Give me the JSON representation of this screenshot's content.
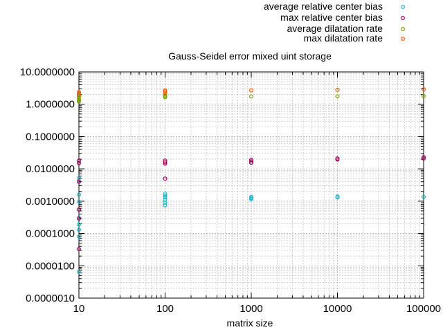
{
  "chart_data": {
    "type": "scatter",
    "title": "Gauss-Seidel error mixed uint storage",
    "xlabel": "matrix size",
    "ylabel": "",
    "x_scale": "log",
    "y_scale": "log",
    "xlim": [
      10,
      100000
    ],
    "ylim": [
      1e-06,
      10
    ],
    "grid": true,
    "legend_position": "top-right",
    "x_ticks": [
      {
        "value": 10,
        "label": "10"
      },
      {
        "value": 100,
        "label": "100"
      },
      {
        "value": 1000,
        "label": "1000"
      },
      {
        "value": 10000,
        "label": "10000"
      },
      {
        "value": 100000,
        "label": "100000"
      }
    ],
    "y_ticks": [
      {
        "value": 10,
        "label": "10.0000000"
      },
      {
        "value": 1,
        "label": "1.0000000"
      },
      {
        "value": 0.1,
        "label": "0.1000000"
      },
      {
        "value": 0.01,
        "label": "0.0100000"
      },
      {
        "value": 0.001,
        "label": "0.0010000"
      },
      {
        "value": 0.0001,
        "label": "0.0001000"
      },
      {
        "value": 1e-05,
        "label": "0.0000100"
      },
      {
        "value": 1e-06,
        "label": "0.0000010"
      }
    ],
    "series": [
      {
        "name": "average relative center bias",
        "color": "#1eb4c8",
        "marker": "circle",
        "points": [
          [
            10,
            0.0052
          ],
          [
            10,
            0.0042
          ],
          [
            10,
            0.0016
          ],
          [
            10,
            0.00095
          ],
          [
            10,
            0.00055
          ],
          [
            10,
            0.0003
          ],
          [
            10,
            0.00019
          ],
          [
            10,
            0.00013
          ],
          [
            10,
            8e-05
          ],
          [
            10,
            6.5e-06
          ],
          [
            100,
            0.0017
          ],
          [
            100,
            0.0015
          ],
          [
            100,
            0.0013
          ],
          [
            100,
            0.0011
          ],
          [
            100,
            0.0009
          ],
          [
            100,
            0.00075
          ],
          [
            1000,
            0.00135
          ],
          [
            1000,
            0.00125
          ],
          [
            1000,
            0.00115
          ],
          [
            10000,
            0.0014
          ],
          [
            10000,
            0.0013
          ],
          [
            100000,
            0.00135
          ]
        ]
      },
      {
        "name": "max relative center bias",
        "color": "#a0005a",
        "marker": "circle",
        "points": [
          [
            10,
            0.018
          ],
          [
            10,
            0.015
          ],
          [
            10,
            0.004
          ],
          [
            10,
            0.00055
          ],
          [
            10,
            0.00029
          ],
          [
            10,
            3.3e-05
          ],
          [
            100,
            0.018
          ],
          [
            100,
            0.016
          ],
          [
            100,
            0.0145
          ],
          [
            100,
            0.005
          ],
          [
            1000,
            0.019
          ],
          [
            1000,
            0.017
          ],
          [
            1000,
            0.0155
          ],
          [
            10000,
            0.021
          ],
          [
            10000,
            0.0195
          ],
          [
            100000,
            0.023
          ],
          [
            100000,
            0.021
          ]
        ]
      },
      {
        "name": "average dilatation rate",
        "color": "#7aa000",
        "marker": "circle",
        "points": [
          [
            10,
            1.8
          ],
          [
            10,
            1.55
          ],
          [
            10,
            1.35
          ],
          [
            10,
            1.2
          ],
          [
            100,
            1.9
          ],
          [
            100,
            1.75
          ],
          [
            100,
            1.65
          ],
          [
            1000,
            1.75
          ],
          [
            10000,
            1.75
          ],
          [
            100000,
            1.8
          ]
        ]
      },
      {
        "name": "max dilatation rate",
        "color": "#f05a00",
        "marker": "circle",
        "points": [
          [
            10,
            2.4
          ],
          [
            10,
            2.15
          ],
          [
            10,
            1.95
          ],
          [
            100,
            2.7
          ],
          [
            100,
            2.5
          ],
          [
            100,
            2.25
          ],
          [
            1000,
            2.7
          ],
          [
            10000,
            2.8
          ],
          [
            100000,
            2.9
          ]
        ]
      }
    ]
  }
}
